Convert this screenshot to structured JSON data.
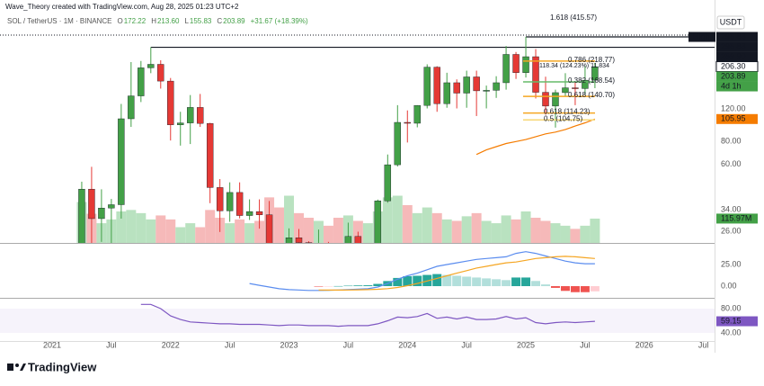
{
  "header": {
    "credit": "Wave_Theory created with TradingView.com, Aug 28, 2025 01:23 UTC+2",
    "symbol": "SOL / TetherUS · 1M · BINANCE",
    "legend": [
      {
        "key": "O",
        "text": "172.22"
      },
      {
        "key": "H",
        "text": "213.60"
      },
      {
        "key": "L",
        "text": "155.83"
      },
      {
        "key": "C",
        "text": "203.89"
      }
    ],
    "change": "+31.67 (+18.39%)",
    "currency": "USDT",
    "brand": "TradingView"
  },
  "chart_data": {
    "type": "candlestick",
    "x": [
      "2021-04",
      "2021-05",
      "2021-06",
      "2021-07",
      "2021-08",
      "2021-09",
      "2021-10",
      "2021-11",
      "2021-12",
      "2022-01",
      "2022-02",
      "2022-03",
      "2022-04",
      "2022-05",
      "2022-06",
      "2022-07",
      "2022-08",
      "2022-09",
      "2022-10",
      "2022-11",
      "2022-12",
      "2023-01",
      "2023-02",
      "2023-03",
      "2023-04",
      "2023-05",
      "2023-06",
      "2023-07",
      "2023-08",
      "2023-09",
      "2023-10",
      "2023-11",
      "2023-12",
      "2024-01",
      "2024-02",
      "2024-03",
      "2024-04",
      "2024-05",
      "2024-06",
      "2024-07",
      "2024-08",
      "2024-09",
      "2024-10",
      "2024-11",
      "2024-12",
      "2025-01",
      "2025-02",
      "2025-03",
      "2025-04",
      "2025-05",
      "2025-06",
      "2025-07",
      "2025-08"
    ],
    "open": [
      19.5,
      44.1,
      30.5,
      34.8,
      36.3,
      106.3,
      141.5,
      201,
      210,
      170.3,
      98.6,
      100.9,
      122.5,
      100.3,
      45,
      33.6,
      42.3,
      31.7,
      33.3,
      32,
      14,
      10,
      24,
      22.6,
      20.8,
      22.4,
      20.8,
      18.9,
      24.4,
      20,
      21.3,
      38.1,
      59.8,
      101.6,
      100.5,
      125.6,
      202.7,
      128.3,
      166.8,
      146.5,
      179.4,
      150.8,
      151.7,
      166.8,
      237.7,
      189.3,
      231,
      148,
      124.6,
      147.4,
      156.6,
      155.1,
      172.22
    ],
    "high": [
      48.4,
      58.3,
      44,
      39,
      128,
      216,
      219,
      260,
      221,
      177,
      116,
      143,
      145,
      101,
      50,
      48,
      48,
      38.8,
      38.8,
      38,
      15.2,
      27,
      26.8,
      23,
      26.6,
      22.8,
      20.9,
      29,
      25.9,
      22.2,
      38.7,
      68,
      126,
      118,
      126,
      210,
      205,
      189,
      174,
      194,
      194,
      161,
      181,
      264,
      245,
      295.83,
      254,
      180,
      153,
      188,
      168,
      206.3,
      213.6
    ],
    "low": [
      15.8,
      19.8,
      22.8,
      21.6,
      30.5,
      96,
      131,
      188,
      155,
      81,
      76,
      77.5,
      96,
      37,
      25.8,
      29.3,
      30.6,
      30,
      26.9,
      8,
      8,
      9.6,
      19,
      15.8,
      18.9,
      17.6,
      12.8,
      18,
      17.4,
      17.3,
      21.2,
      37.2,
      58.5,
      79,
      95.5,
      121,
      116,
      122,
      121,
      122,
      110,
      121,
      138,
      153,
      175,
      178,
      137,
      112,
      95.2,
      140,
      126,
      144,
      155.83
    ],
    "close": [
      44.1,
      30.5,
      34.8,
      36.3,
      106.3,
      141.5,
      201,
      210,
      170.3,
      98.6,
      100.9,
      122.5,
      100.3,
      45,
      33.6,
      42.3,
      31.7,
      33.3,
      32,
      14,
      10,
      24,
      22.6,
      20.8,
      22.4,
      20.8,
      18.9,
      24.4,
      20,
      21.3,
      38.1,
      59.8,
      101.6,
      100.5,
      125.6,
      202.7,
      128.3,
      166.8,
      146.5,
      179.4,
      150.8,
      151.7,
      166.8,
      237.7,
      189.3,
      231,
      148,
      124.6,
      147.4,
      156.6,
      155.1,
      172.22,
      203.89
    ],
    "up_color": "#43a047",
    "down_color": "#e53935",
    "log_scale": true,
    "ylim": [
      22.5,
      429
    ],
    "yticks": [
      {
        "value": 120,
        "label": "120.00"
      },
      {
        "value": 80,
        "label": "80.00"
      },
      {
        "value": 60,
        "label": "60.00"
      },
      {
        "value": 34,
        "label": "34.00"
      },
      {
        "value": 26,
        "label": "26.00"
      }
    ],
    "xticks": [
      {
        "value": "2021-01",
        "label": "2021"
      },
      {
        "value": "2021-07",
        "label": "Jul"
      },
      {
        "value": "2022-01",
        "label": "2022"
      },
      {
        "value": "2022-07",
        "label": "Jul"
      },
      {
        "value": "2023-01",
        "label": "2023"
      },
      {
        "value": "2023-07",
        "label": "Jul"
      },
      {
        "value": "2024-01",
        "label": "2024"
      },
      {
        "value": "2024-07",
        "label": "Jul"
      },
      {
        "value": "2025-01",
        "label": "2025"
      },
      {
        "value": "2025-07",
        "label": "Jul"
      },
      {
        "value": "2026-01",
        "label": "2026"
      },
      {
        "value": "2026-07",
        "label": "Jul"
      }
    ],
    "high_label": "High",
    "markers": [
      {
        "value": 295.83,
        "label": "295.83",
        "from": "2025-01"
      },
      {
        "value": 259.9,
        "label": "259.90",
        "from": "2021-11"
      },
      {
        "value": 206.3,
        "label": "206.30"
      }
    ],
    "countdown": "4d 1h",
    "measure": "118.34 (124.23%) 11,834",
    "fib": [
      {
        "label": "1.618 (415.57)",
        "value": 415.57,
        "color": "#2962ff"
      },
      {
        "label": "0.786 (218.77)",
        "value": 218.77,
        "color": "#f5a623"
      },
      {
        "label": "0.382 (168.54)",
        "value": 168.54,
        "color": "#66bb6a"
      },
      {
        "label": "0.618 (140.70)",
        "value": 140.7,
        "color": "#f5a623"
      },
      {
        "label": "0.618 (114.23)",
        "value": 114.23,
        "color": "#f5a623"
      },
      {
        "label": "0.5 (104.75)",
        "value": 104.75,
        "color": "#f7d774"
      }
    ],
    "ema": {
      "color": "#f57c00",
      "values": [
        null,
        null,
        null,
        null,
        null,
        null,
        null,
        null,
        null,
        null,
        null,
        null,
        null,
        null,
        null,
        null,
        null,
        null,
        null,
        null,
        null,
        null,
        null,
        null,
        null,
        null,
        null,
        null,
        null,
        null,
        null,
        null,
        null,
        null,
        null,
        null,
        null,
        null,
        null,
        null,
        68,
        72,
        75,
        78,
        80,
        82,
        85,
        88,
        90,
        93,
        97,
        101,
        105.95
      ]
    },
    "volume": {
      "ylim": [
        0,
        300
      ],
      "up_color": "#b9e2c0",
      "down_color": "#f6b9b9",
      "last_label": "115.97M",
      "values": [
        195,
        139,
        94,
        112,
        150,
        157,
        142,
        112,
        131,
        112,
        75,
        94,
        75,
        157,
        120,
        94,
        112,
        94,
        105,
        217,
        169,
        225,
        142,
        120,
        105,
        82,
        120,
        131,
        105,
        94,
        150,
        217,
        225,
        180,
        142,
        169,
        142,
        112,
        105,
        127,
        142,
        105,
        94,
        131,
        112,
        150,
        120,
        105,
        94,
        82,
        67,
        82,
        115.97
      ]
    },
    "macd": {
      "ylim": [
        -12.5,
        48
      ],
      "yticks": [
        {
          "value": 25,
          "label": "25.00"
        },
        {
          "value": 0,
          "label": "0.00"
        }
      ],
      "line": {
        "color": "#5b8def",
        "values": [
          null,
          null,
          null,
          null,
          null,
          null,
          null,
          null,
          null,
          null,
          null,
          null,
          null,
          null,
          null,
          null,
          null,
          3,
          1,
          -1,
          -3,
          -4,
          -4.5,
          -5,
          -5,
          -4.8,
          -4.5,
          -4,
          -3.5,
          -3,
          -1,
          3,
          8,
          12,
          15,
          19,
          23,
          25,
          27,
          29,
          31,
          32,
          33,
          34,
          38,
          40,
          38,
          35,
          32,
          29,
          27,
          26,
          26
        ]
      },
      "signal": {
        "color": "#f5a623",
        "values": [
          null,
          null,
          null,
          null,
          null,
          null,
          null,
          null,
          null,
          null,
          null,
          null,
          null,
          null,
          null,
          null,
          null,
          null,
          null,
          null,
          null,
          null,
          null,
          null,
          -4.5,
          -4.6,
          -4.6,
          -4.5,
          -4.3,
          -4,
          -3.6,
          -2.9,
          -1.5,
          0.5,
          3,
          6,
          9,
          12,
          15,
          18,
          21,
          23,
          25,
          27,
          28,
          30,
          32,
          33,
          34,
          34.5,
          34,
          33,
          32
        ]
      },
      "histogram": {
        "up_color": "#26a69a",
        "up_fade": "#b2dfdb",
        "down_color": "#ef5350",
        "down_fade": "#ffcdd2",
        "values": [
          null,
          null,
          null,
          null,
          null,
          null,
          null,
          null,
          null,
          null,
          null,
          null,
          null,
          null,
          null,
          null,
          null,
          null,
          null,
          null,
          null,
          null,
          null,
          null,
          -0.5,
          -0.2,
          0.1,
          0.5,
          0.8,
          1,
          2.6,
          5.9,
          9.5,
          11.5,
          12,
          13,
          14,
          13,
          12,
          11,
          10,
          9,
          8,
          7,
          10,
          10,
          6,
          2,
          -2,
          -5.5,
          -7,
          -7,
          -6
        ]
      }
    },
    "rsi": {
      "ylim": [
        28.1,
        94.8
      ],
      "yticks": [
        {
          "value": 80,
          "label": "80.00"
        },
        {
          "value": 40,
          "label": "40.00"
        }
      ],
      "color": "#7e57c2",
      "values": [
        null,
        null,
        null,
        null,
        null,
        null,
        87,
        87,
        80,
        68,
        62,
        58,
        57,
        56,
        55,
        55,
        54,
        54,
        54,
        53,
        52,
        53,
        53,
        52,
        52,
        52,
        51,
        52,
        52,
        52,
        55,
        60,
        66,
        65,
        67,
        72,
        64,
        66,
        63,
        66,
        62,
        62,
        63,
        67,
        63,
        65,
        57,
        55,
        57,
        58,
        57,
        58,
        59.15
      ]
    }
  }
}
